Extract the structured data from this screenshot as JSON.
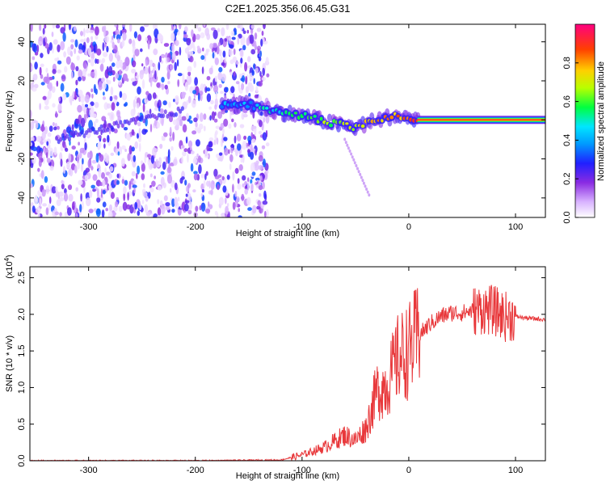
{
  "chart_data": [
    {
      "type": "heatmap",
      "title": "C2E1.2025.356.06.45.G31",
      "xlabel": "Height of straight line (km)",
      "ylabel": "Frequency (Hz)",
      "xlim": [
        -355,
        128
      ],
      "ylim": [
        -50,
        49
      ],
      "xticks": [
        -300,
        -200,
        -100,
        0,
        100
      ],
      "yticks": [
        -40,
        -20,
        0,
        20,
        40
      ],
      "colorbar": {
        "label": "Normalized spectral amplitude",
        "range": [
          0,
          1
        ],
        "ticks": [
          "0.0",
          "0.2",
          "0.4",
          "0.6",
          "0.8"
        ],
        "tick_values": [
          0,
          0.2,
          0.4,
          0.6,
          0.8
        ],
        "colors": [
          "#ffffff",
          "#9b30ff",
          "#1e1eff",
          "#00e6ff",
          "#00ff40",
          "#c8ff00",
          "#ffd000",
          "#ff3c00",
          "#ff007a"
        ]
      },
      "features": [
        {
          "name": "noise region",
          "x_range": [
            -355,
            -132
          ],
          "y_range": [
            -50,
            49
          ],
          "level": 0.15
        },
        {
          "name": "signal trace",
          "points": [
            [
              -175,
              7
            ],
            [
              -150,
              8
            ],
            [
              -130,
              5
            ],
            [
              -110,
              3
            ],
            [
              -90,
              1
            ],
            [
              -70,
              -2
            ],
            [
              -50,
              -4
            ],
            [
              -35,
              -1
            ],
            [
              -15,
              2
            ],
            [
              0,
              1
            ],
            [
              128,
              0
            ]
          ],
          "level_start": 0.35,
          "level_end": 0.95
        }
      ]
    },
    {
      "type": "line",
      "xlabel": "Height of straight line (km)",
      "ylabel": "SNR (10 * v/v)",
      "y_multiplier": "(x10^4)",
      "multiplier_base": "(x10",
      "multiplier_exp": "4",
      "multiplier_close": ")",
      "xlim": [
        -355,
        128
      ],
      "ylim": [
        0,
        2.65
      ],
      "xticks": [
        -300,
        -200,
        -100,
        0,
        100
      ],
      "yticks": [
        "0.0",
        "0.5",
        "1.0",
        "1.5",
        "2.0",
        "2.5"
      ],
      "ytick_values": [
        0,
        0.5,
        1.0,
        1.5,
        2.0,
        2.5
      ],
      "color": "#e8383b",
      "series": [
        {
          "name": "SNR",
          "x": [
            -355,
            -200,
            -120,
            -100,
            -80,
            -60,
            -50,
            -40,
            -30,
            -20,
            -10,
            0,
            10,
            20,
            30,
            40,
            50,
            60,
            70,
            80,
            90,
            100,
            110,
            128
          ],
          "values": [
            0.0,
            0.0,
            0.01,
            0.08,
            0.18,
            0.35,
            0.28,
            0.45,
            0.95,
            1.05,
            1.4,
            1.5,
            1.72,
            1.87,
            1.97,
            2.02,
            2.02,
            2.05,
            2.07,
            2.05,
            1.97,
            1.97,
            1.95,
            1.93
          ]
        }
      ]
    }
  ]
}
